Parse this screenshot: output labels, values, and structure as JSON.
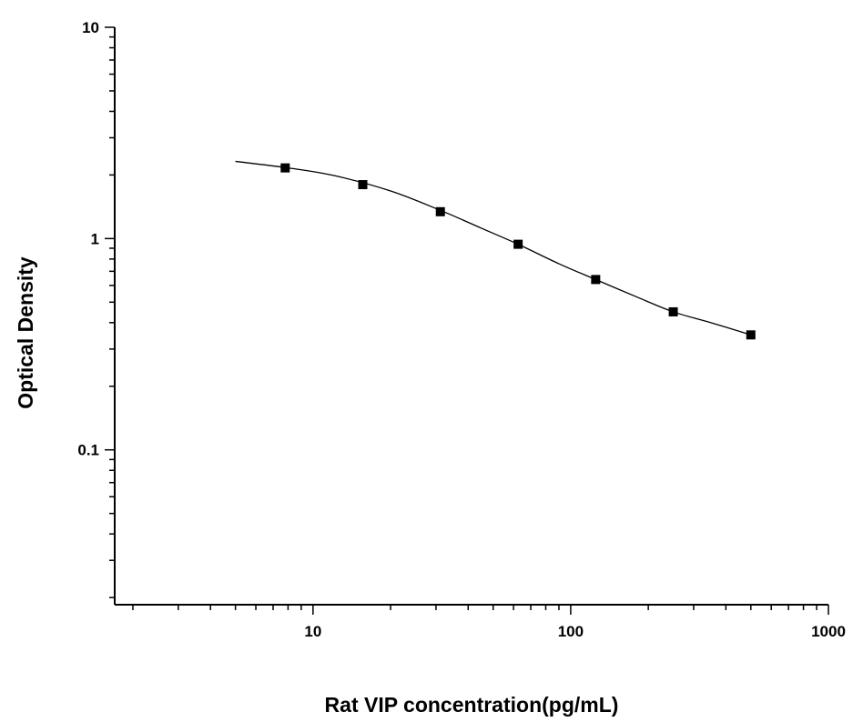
{
  "chart_data": {
    "type": "scatter",
    "title": "",
    "xlabel": "Rat VIP concentration(pg/mL)",
    "ylabel": "Optical Density",
    "xscale": "log",
    "yscale": "log",
    "xlim": [
      1.7,
      1000
    ],
    "ylim": [
      0.0185,
      10
    ],
    "x_ticks": [
      10,
      100,
      1000
    ],
    "x_tick_labels": [
      "10",
      "100",
      "1000"
    ],
    "y_ticks": [
      0.1,
      1,
      10
    ],
    "y_tick_labels": [
      "0.1",
      "1",
      "10"
    ],
    "grid": false,
    "legend": "none",
    "series": [
      {
        "marker": "square",
        "x": [
          7.8,
          15.6,
          31.2,
          62.5,
          125,
          250,
          500
        ],
        "y": [
          2.16,
          1.8,
          1.34,
          0.94,
          0.64,
          0.45,
          0.35
        ]
      }
    ],
    "fit_curve": {
      "x": [
        5,
        8,
        12,
        20,
        31.2,
        45,
        62.5,
        90,
        125,
        180,
        250,
        350,
        500
      ],
      "y": [
        2.32,
        2.16,
        1.99,
        1.68,
        1.36,
        1.12,
        0.94,
        0.76,
        0.64,
        0.53,
        0.45,
        0.4,
        0.35
      ]
    },
    "colors": {
      "line": "#000000",
      "marker": "#000000",
      "axis": "#000000"
    }
  }
}
